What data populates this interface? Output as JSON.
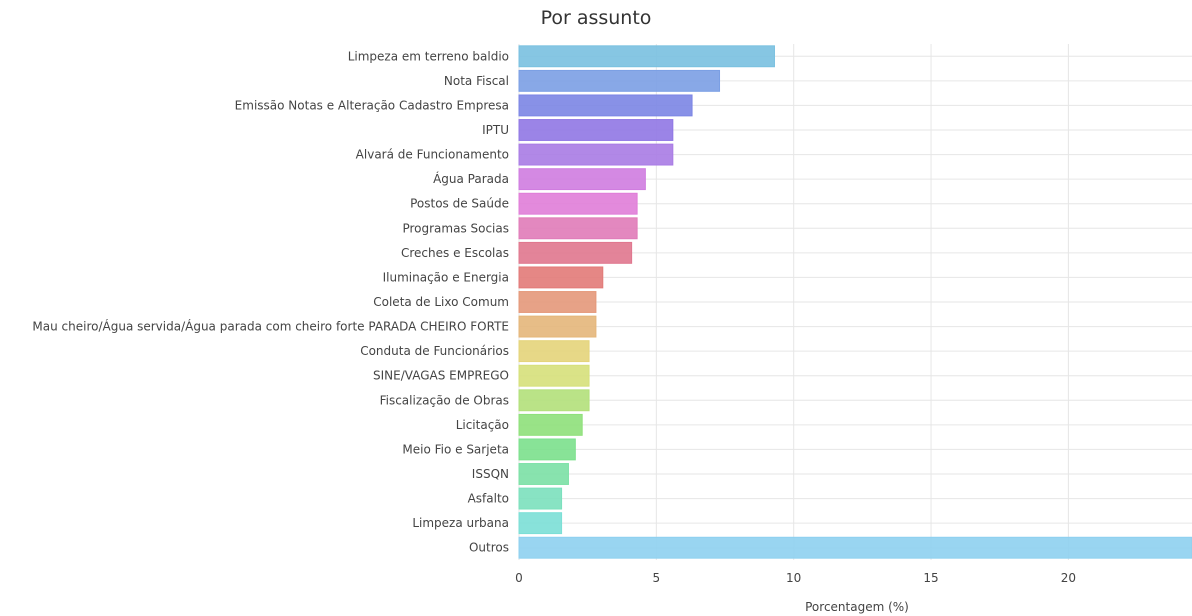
{
  "chart_data": {
    "type": "bar",
    "orientation": "horizontal",
    "title": "Por assunto",
    "xlabel": "Porcentagem (%)",
    "ylabel": "",
    "xlim": [
      0,
      24.5
    ],
    "xticks": [
      0,
      5,
      10,
      15,
      20
    ],
    "grid": true,
    "legend": "none",
    "categories": [
      "Limpeza em terreno baldio",
      "Nota Fiscal",
      "Emissão Notas e Alteração Cadastro Empresa",
      "IPTU",
      "Alvará de Funcionamento",
      "Água Parada",
      "Postos de Saúde",
      "Programas Socias",
      "Creches e Escolas",
      "Iluminação e Energia",
      "Coleta de Lixo Comum",
      "Mau cheiro/Água servida/Água parada com cheiro forte PARADA CHEIRO FORTE",
      "Conduta de Funcionários",
      "SINE/VAGAS EMPREGO",
      "Fiscalização de Obras",
      "Licitação",
      "Meio Fio e Sarjeta",
      "ISSQN",
      "Asfalto",
      "Limpeza urbana",
      "Outros"
    ],
    "values": [
      9.3,
      7.3,
      6.3,
      5.6,
      5.6,
      4.6,
      4.3,
      4.3,
      4.1,
      3.05,
      2.8,
      2.8,
      2.55,
      2.55,
      2.55,
      2.3,
      2.05,
      1.8,
      1.55,
      1.55,
      24.5
    ],
    "colors": [
      "#79c0e0",
      "#7b9fe4",
      "#7b85e4",
      "#9077e4",
      "#a97be4",
      "#cf7ce0",
      "#e07dd8",
      "#e07bb8",
      "#e0778e",
      "#e27a78",
      "#e4987a",
      "#e4b67a",
      "#e4d47a",
      "#d6e07a",
      "#b2e07a",
      "#8ee07a",
      "#7be08c",
      "#7be0a5",
      "#7be0bd",
      "#7bdfd6",
      "#8ed0ef"
    ]
  }
}
